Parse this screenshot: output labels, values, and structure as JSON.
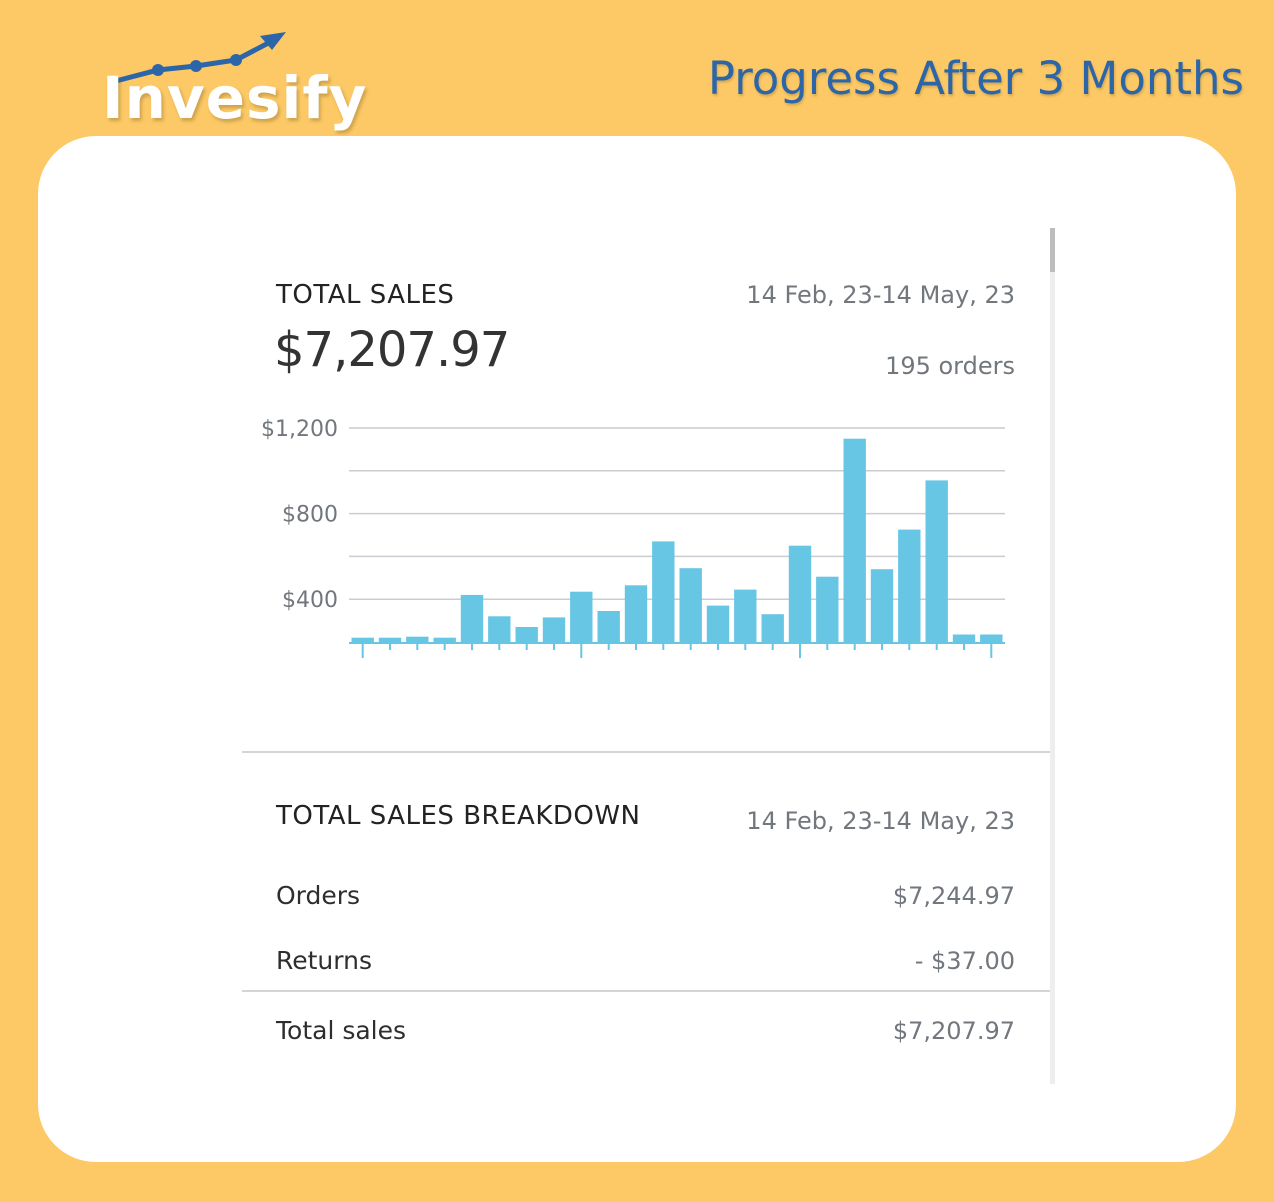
{
  "brand": {
    "logo_text": "Invesify",
    "accent": "#2d66a8",
    "background": "#fcc966"
  },
  "headline": "Progress After 3 Months",
  "total_sales": {
    "title": "TOTAL SALES",
    "date_range": "14 Feb, 23-14 May, 23",
    "amount": "$7,207.97",
    "orders": "195 orders"
  },
  "breakdown": {
    "title": "TOTAL SALES BREAKDOWN",
    "date_range": "14 Feb, 23-14 May, 23",
    "rows": [
      {
        "label": "Orders",
        "value": "$7,244.97"
      },
      {
        "label": "Returns",
        "value": "- $37.00"
      }
    ],
    "total": {
      "label": "Total sales",
      "value": "$7,207.97"
    }
  },
  "chart_data": {
    "type": "bar",
    "bar_color": "#67c6e4",
    "ylim": [
      200,
      1200
    ],
    "yticks": [
      400,
      800,
      1200
    ],
    "ytick_labels": [
      "$400",
      "$800",
      "$1,200"
    ],
    "gridlines": [
      400,
      600,
      800,
      1000,
      1200
    ],
    "values": [
      220,
      220,
      225,
      220,
      420,
      320,
      270,
      315,
      435,
      345,
      465,
      670,
      545,
      370,
      445,
      330,
      650,
      505,
      1150,
      540,
      725,
      955,
      235,
      235
    ]
  }
}
